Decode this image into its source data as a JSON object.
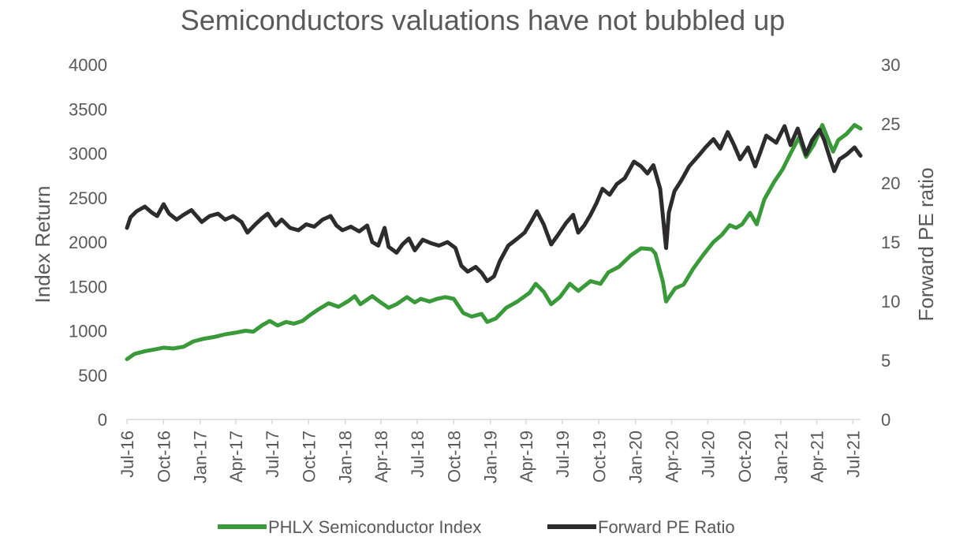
{
  "chart_data": {
    "type": "line",
    "title": "Semiconductors valuations have not bubbled up",
    "ylabel": "Index Return",
    "y2label": "Forward PE ratio",
    "ylim": [
      0,
      4000
    ],
    "y2lim": [
      0,
      30
    ],
    "yticks": [
      0,
      500,
      1000,
      1500,
      2000,
      2500,
      3000,
      3500,
      4000
    ],
    "y2ticks": [
      0,
      5,
      10,
      15,
      20,
      25,
      30
    ],
    "xlim": [
      "2016-07-01",
      "2021-07-20"
    ],
    "xticks": [
      {
        "label": "Jul-16",
        "date": "2016-07-01"
      },
      {
        "label": "Oct-16",
        "date": "2016-10-01"
      },
      {
        "label": "Jan-17",
        "date": "2017-01-01"
      },
      {
        "label": "Apr-17",
        "date": "2017-04-01"
      },
      {
        "label": "Jul-17",
        "date": "2017-07-01"
      },
      {
        "label": "Oct-17",
        "date": "2017-10-01"
      },
      {
        "label": "Jan-18",
        "date": "2018-01-01"
      },
      {
        "label": "Apr-18",
        "date": "2018-04-01"
      },
      {
        "label": "Jul-18",
        "date": "2018-07-01"
      },
      {
        "label": "Oct-18",
        "date": "2018-10-01"
      },
      {
        "label": "Jan-19",
        "date": "2019-01-01"
      },
      {
        "label": "Apr-19",
        "date": "2019-04-01"
      },
      {
        "label": "Jul-19",
        "date": "2019-07-01"
      },
      {
        "label": "Oct-19",
        "date": "2019-10-01"
      },
      {
        "label": "Jan-20",
        "date": "2020-01-01"
      },
      {
        "label": "Apr-20",
        "date": "2020-04-01"
      },
      {
        "label": "Jul-20",
        "date": "2020-07-01"
      },
      {
        "label": "Oct-20",
        "date": "2020-10-01"
      },
      {
        "label": "Jan-21",
        "date": "2021-01-01"
      },
      {
        "label": "Apr-21",
        "date": "2021-04-01"
      },
      {
        "label": "Jul-21",
        "date": "2021-07-01"
      }
    ],
    "legend": "bottom",
    "grid": false,
    "series": [
      {
        "name": "PHLX Semiconductor Index",
        "axis": "left",
        "color": "#3a9a3a",
        "points": [
          [
            "2016-07-01",
            680
          ],
          [
            "2016-07-20",
            740
          ],
          [
            "2016-08-15",
            770
          ],
          [
            "2016-09-10",
            790
          ],
          [
            "2016-10-01",
            810
          ],
          [
            "2016-10-25",
            800
          ],
          [
            "2016-11-20",
            820
          ],
          [
            "2016-12-15",
            880
          ],
          [
            "2017-01-10",
            910
          ],
          [
            "2017-02-05",
            930
          ],
          [
            "2017-03-05",
            960
          ],
          [
            "2017-04-01",
            980
          ],
          [
            "2017-04-25",
            1000
          ],
          [
            "2017-05-15",
            990
          ],
          [
            "2017-06-05",
            1060
          ],
          [
            "2017-06-25",
            1110
          ],
          [
            "2017-07-15",
            1060
          ],
          [
            "2017-08-05",
            1100
          ],
          [
            "2017-08-25",
            1080
          ],
          [
            "2017-09-15",
            1110
          ],
          [
            "2017-10-05",
            1180
          ],
          [
            "2017-10-25",
            1240
          ],
          [
            "2017-11-20",
            1310
          ],
          [
            "2017-12-15",
            1270
          ],
          [
            "2018-01-10",
            1340
          ],
          [
            "2018-01-25",
            1390
          ],
          [
            "2018-02-08",
            1300
          ],
          [
            "2018-03-10",
            1390
          ],
          [
            "2018-03-28",
            1330
          ],
          [
            "2018-04-20",
            1260
          ],
          [
            "2018-05-10",
            1300
          ],
          [
            "2018-06-05",
            1380
          ],
          [
            "2018-06-25",
            1320
          ],
          [
            "2018-07-10",
            1360
          ],
          [
            "2018-08-01",
            1330
          ],
          [
            "2018-08-20",
            1360
          ],
          [
            "2018-09-10",
            1380
          ],
          [
            "2018-10-01",
            1360
          ],
          [
            "2018-10-25",
            1200
          ],
          [
            "2018-11-15",
            1160
          ],
          [
            "2018-12-10",
            1190
          ],
          [
            "2018-12-24",
            1100
          ],
          [
            "2019-01-15",
            1140
          ],
          [
            "2019-02-10",
            1260
          ],
          [
            "2019-03-10",
            1330
          ],
          [
            "2019-04-10",
            1430
          ],
          [
            "2019-04-25",
            1530
          ],
          [
            "2019-05-15",
            1440
          ],
          [
            "2019-06-03",
            1300
          ],
          [
            "2019-06-25",
            1380
          ],
          [
            "2019-07-20",
            1530
          ],
          [
            "2019-08-10",
            1450
          ],
          [
            "2019-09-10",
            1560
          ],
          [
            "2019-10-05",
            1530
          ],
          [
            "2019-10-25",
            1660
          ],
          [
            "2019-11-20",
            1720
          ],
          [
            "2019-12-20",
            1850
          ],
          [
            "2020-01-15",
            1930
          ],
          [
            "2020-02-10",
            1920
          ],
          [
            "2020-02-20",
            1870
          ],
          [
            "2020-03-10",
            1550
          ],
          [
            "2020-03-18",
            1330
          ],
          [
            "2020-04-10",
            1480
          ],
          [
            "2020-05-01",
            1520
          ],
          [
            "2020-05-25",
            1700
          ],
          [
            "2020-06-20",
            1860
          ],
          [
            "2020-07-15",
            2000
          ],
          [
            "2020-08-05",
            2080
          ],
          [
            "2020-08-25",
            2190
          ],
          [
            "2020-09-10",
            2160
          ],
          [
            "2020-09-25",
            2200
          ],
          [
            "2020-10-15",
            2330
          ],
          [
            "2020-11-01",
            2200
          ],
          [
            "2020-11-20",
            2480
          ],
          [
            "2020-12-15",
            2680
          ],
          [
            "2021-01-05",
            2820
          ],
          [
            "2021-01-25",
            3000
          ],
          [
            "2021-02-15",
            3180
          ],
          [
            "2021-03-05",
            2960
          ],
          [
            "2021-03-25",
            3100
          ],
          [
            "2021-04-15",
            3320
          ],
          [
            "2021-05-12",
            3020
          ],
          [
            "2021-05-25",
            3150
          ],
          [
            "2021-06-15",
            3220
          ],
          [
            "2021-07-05",
            3320
          ],
          [
            "2021-07-20",
            3280
          ]
        ]
      },
      {
        "name": "Forward PE Ratio",
        "axis": "right",
        "color": "#2d2b2b",
        "points": [
          [
            "2016-07-01",
            16.2
          ],
          [
            "2016-07-10",
            17.1
          ],
          [
            "2016-07-25",
            17.6
          ],
          [
            "2016-08-15",
            18.0
          ],
          [
            "2016-09-01",
            17.5
          ],
          [
            "2016-09-15",
            17.2
          ],
          [
            "2016-10-01",
            18.2
          ],
          [
            "2016-10-15",
            17.4
          ],
          [
            "2016-11-03",
            16.9
          ],
          [
            "2016-11-20",
            17.3
          ],
          [
            "2016-12-10",
            17.7
          ],
          [
            "2017-01-05",
            16.7
          ],
          [
            "2017-01-25",
            17.2
          ],
          [
            "2017-02-15",
            17.4
          ],
          [
            "2017-03-05",
            16.9
          ],
          [
            "2017-03-25",
            17.2
          ],
          [
            "2017-04-15",
            16.7
          ],
          [
            "2017-04-30",
            15.8
          ],
          [
            "2017-05-20",
            16.5
          ],
          [
            "2017-06-05",
            17.0
          ],
          [
            "2017-06-20",
            17.4
          ],
          [
            "2017-07-10",
            16.4
          ],
          [
            "2017-07-25",
            16.9
          ],
          [
            "2017-08-15",
            16.2
          ],
          [
            "2017-09-05",
            16.0
          ],
          [
            "2017-09-25",
            16.5
          ],
          [
            "2017-10-15",
            16.3
          ],
          [
            "2017-11-05",
            16.9
          ],
          [
            "2017-11-25",
            17.2
          ],
          [
            "2017-12-10",
            16.4
          ],
          [
            "2017-12-25",
            16.0
          ],
          [
            "2018-01-15",
            16.3
          ],
          [
            "2018-02-05",
            15.9
          ],
          [
            "2018-02-25",
            16.4
          ],
          [
            "2018-03-10",
            15.0
          ],
          [
            "2018-03-25",
            14.7
          ],
          [
            "2018-04-10",
            16.2
          ],
          [
            "2018-04-20",
            14.6
          ],
          [
            "2018-05-10",
            14.1
          ],
          [
            "2018-05-25",
            14.8
          ],
          [
            "2018-06-10",
            15.3
          ],
          [
            "2018-06-25",
            14.3
          ],
          [
            "2018-07-15",
            15.2
          ],
          [
            "2018-08-05",
            14.9
          ],
          [
            "2018-08-25",
            14.7
          ],
          [
            "2018-09-15",
            15.0
          ],
          [
            "2018-10-05",
            14.5
          ],
          [
            "2018-10-20",
            13.0
          ],
          [
            "2018-11-05",
            12.5
          ],
          [
            "2018-11-25",
            12.9
          ],
          [
            "2018-12-10",
            12.4
          ],
          [
            "2018-12-24",
            11.7
          ],
          [
            "2019-01-10",
            12.1
          ],
          [
            "2019-01-25",
            13.4
          ],
          [
            "2019-02-15",
            14.7
          ],
          [
            "2019-03-10",
            15.3
          ],
          [
            "2019-03-28",
            15.8
          ],
          [
            "2019-04-15",
            16.8
          ],
          [
            "2019-04-28",
            17.6
          ],
          [
            "2019-05-15",
            16.5
          ],
          [
            "2019-06-03",
            14.8
          ],
          [
            "2019-06-20",
            15.6
          ],
          [
            "2019-07-10",
            16.6
          ],
          [
            "2019-07-28",
            17.3
          ],
          [
            "2019-08-10",
            15.8
          ],
          [
            "2019-08-25",
            16.4
          ],
          [
            "2019-09-10",
            17.3
          ],
          [
            "2019-09-25",
            18.3
          ],
          [
            "2019-10-10",
            19.5
          ],
          [
            "2019-10-28",
            19.0
          ],
          [
            "2019-11-15",
            19.9
          ],
          [
            "2019-12-05",
            20.4
          ],
          [
            "2019-12-28",
            21.8
          ],
          [
            "2020-01-15",
            21.4
          ],
          [
            "2020-01-31",
            20.8
          ],
          [
            "2020-02-15",
            21.5
          ],
          [
            "2020-03-03",
            19.5
          ],
          [
            "2020-03-12",
            16.5
          ],
          [
            "2020-03-18",
            14.5
          ],
          [
            "2020-03-25",
            17.5
          ],
          [
            "2020-04-08",
            19.3
          ],
          [
            "2020-04-25",
            20.2
          ],
          [
            "2020-05-15",
            21.4
          ],
          [
            "2020-06-10",
            22.4
          ],
          [
            "2020-06-25",
            23.0
          ],
          [
            "2020-07-15",
            23.7
          ],
          [
            "2020-08-01",
            22.9
          ],
          [
            "2020-08-20",
            24.3
          ],
          [
            "2020-09-05",
            23.2
          ],
          [
            "2020-09-20",
            22.0
          ],
          [
            "2020-10-10",
            23.0
          ],
          [
            "2020-10-28",
            21.4
          ],
          [
            "2020-11-10",
            22.6
          ],
          [
            "2020-11-25",
            24.0
          ],
          [
            "2020-12-20",
            23.4
          ],
          [
            "2021-01-10",
            24.8
          ],
          [
            "2021-01-25",
            23.2
          ],
          [
            "2021-02-12",
            24.6
          ],
          [
            "2021-03-05",
            22.4
          ],
          [
            "2021-03-20",
            23.6
          ],
          [
            "2021-04-08",
            24.5
          ],
          [
            "2021-04-20",
            23.6
          ],
          [
            "2021-05-05",
            22.0
          ],
          [
            "2021-05-15",
            21.0
          ],
          [
            "2021-05-28",
            22.0
          ],
          [
            "2021-06-15",
            22.4
          ],
          [
            "2021-07-05",
            23.0
          ],
          [
            "2021-07-20",
            22.3
          ]
        ]
      }
    ]
  }
}
